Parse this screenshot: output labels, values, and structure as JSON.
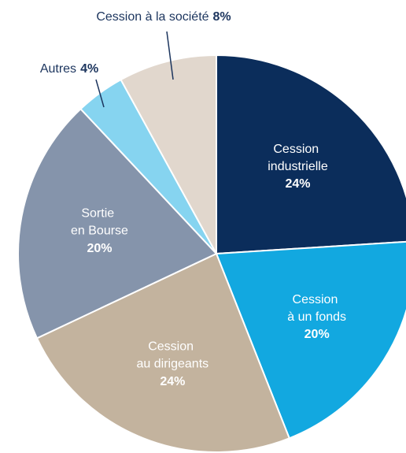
{
  "chart_data": {
    "type": "pie",
    "categories": [
      "Cession industrielle",
      "Cession à un fonds",
      "Cession au dirigeants",
      "Sortie en Bourse",
      "Autres",
      "Cession à la société"
    ],
    "values": [
      24,
      20,
      24,
      20,
      4,
      8
    ],
    "value_labels": [
      "24%",
      "20%",
      "24%",
      "20%",
      "4%",
      "8%"
    ],
    "colors": [
      "#0b2d5b",
      "#12a8e0",
      "#c3b39e",
      "#8594ab",
      "#86d4f0",
      "#e1d7cd"
    ]
  }
}
